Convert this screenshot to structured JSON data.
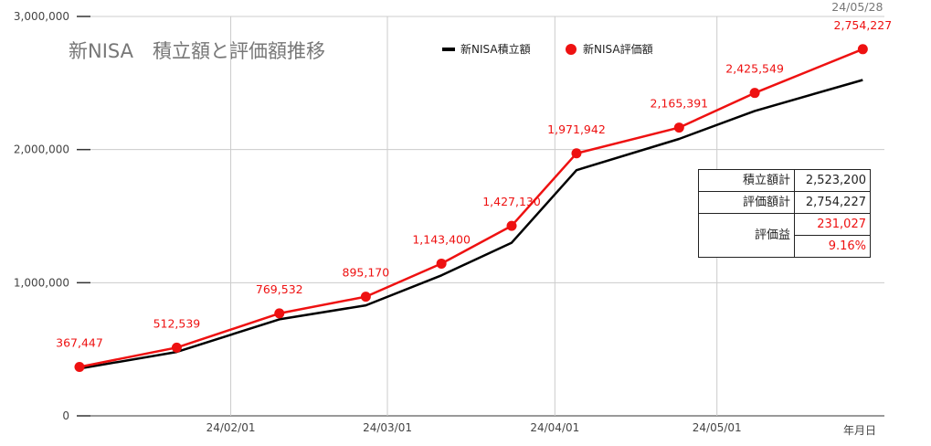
{
  "chart_data": {
    "type": "line",
    "title": "新NISA　積立額と評価額推移",
    "xlabel": "年月日",
    "ylabel": "",
    "ylim": [
      0,
      3000000
    ],
    "yticks": [
      0,
      1000000,
      2000000,
      3000000
    ],
    "ytick_labels": [
      "0",
      "1,000,000",
      "2,000,000",
      "3,000,000"
    ],
    "xlim": [
      "2024-01-04",
      "2024-06-01"
    ],
    "xticks": [
      "2024-02-01",
      "2024-03-01",
      "2024-04-01",
      "2024-05-01"
    ],
    "xtick_labels": [
      "24/02/01",
      "24/03/01",
      "24/04/01",
      "24/05/01"
    ],
    "last_date_label": "24/05/28",
    "grid": true,
    "legend_position": "top",
    "series": [
      {
        "name": "新NISA積立額",
        "color": "#000000",
        "marker": "none",
        "x": [
          "2024-01-04",
          "2024-01-22",
          "2024-02-10",
          "2024-02-26",
          "2024-03-11",
          "2024-03-24",
          "2024-04-05",
          "2024-04-24",
          "2024-05-08",
          "2024-05-28"
        ],
        "values": [
          355000,
          480000,
          725000,
          830000,
          1055000,
          1300000,
          1845000,
          2080000,
          2290000,
          2523200
        ]
      },
      {
        "name": "新NISA評価額",
        "color": "#ee1111",
        "marker": "circle",
        "x": [
          "2024-01-04",
          "2024-01-22",
          "2024-02-10",
          "2024-02-26",
          "2024-03-11",
          "2024-03-24",
          "2024-04-05",
          "2024-04-24",
          "2024-05-08",
          "2024-05-28"
        ],
        "values": [
          367447,
          512539,
          769532,
          895170,
          1143400,
          1427130,
          1971942,
          2165391,
          2425549,
          2754227
        ],
        "data_labels": [
          "367,447",
          "512,539",
          "769,532",
          "895,170",
          "1,143,400",
          "1,427,130",
          "1,971,942",
          "2,165,391",
          "2,425,549",
          "2,754,227"
        ]
      }
    ]
  },
  "summary": {
    "accumulated_label": "積立額計",
    "accumulated_value": "2,523,200",
    "valuation_label": "評価額計",
    "valuation_value": "2,754,227",
    "gain_label": "評価益",
    "gain_value": "231,027",
    "gain_pct": "9.16%"
  }
}
